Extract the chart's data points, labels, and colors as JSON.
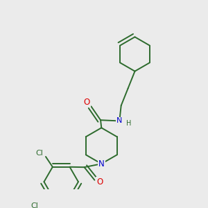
{
  "background_color": "#ebebeb",
  "bond_color": "#2d6b2d",
  "atom_colors": {
    "O": "#dd0000",
    "N": "#0000cc",
    "Cl": "#2d6b2d",
    "H": "#2d6b2d",
    "C": "#2d6b2d"
  },
  "line_width": 1.4,
  "dbo": 0.018
}
